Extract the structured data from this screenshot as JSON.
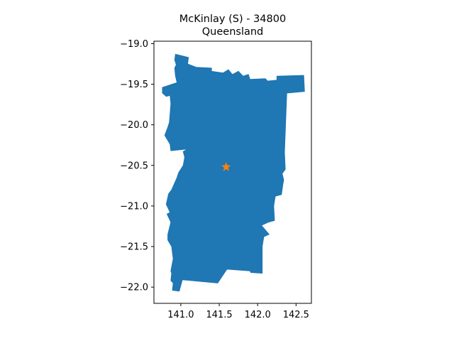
{
  "figure": {
    "title_line1": "McKinlay (S) - 34800",
    "title_line2": "Queensland"
  },
  "chart_data": {
    "type": "map",
    "xlim": [
      140.65,
      142.7
    ],
    "ylim": [
      -22.2,
      -18.97
    ],
    "xticks": [
      141.0,
      141.5,
      142.0,
      142.5
    ],
    "xtick_labels": [
      "141.0",
      "141.5",
      "142.0",
      "142.5"
    ],
    "yticks": [
      -19.0,
      -19.5,
      -20.0,
      -20.5,
      -21.0,
      -21.5,
      -22.0
    ],
    "ytick_labels": [
      "−19.0",
      "−19.5",
      "−20.0",
      "−20.5",
      "−21.0",
      "−21.5",
      "−22.0"
    ],
    "region_color": "#1f77b4",
    "marker_color": "#ff7f0e",
    "marker": {
      "lon": 141.59,
      "lat": -20.52,
      "symbol": "star"
    },
    "region_outline": [
      [
        140.93,
        -19.13
      ],
      [
        141.1,
        -19.17
      ],
      [
        141.09,
        -19.25
      ],
      [
        141.2,
        -19.29
      ],
      [
        141.4,
        -19.3
      ],
      [
        141.4,
        -19.34
      ],
      [
        141.55,
        -19.36
      ],
      [
        141.62,
        -19.32
      ],
      [
        141.67,
        -19.38
      ],
      [
        141.75,
        -19.34
      ],
      [
        141.81,
        -19.4
      ],
      [
        141.88,
        -19.38
      ],
      [
        141.9,
        -19.44
      ],
      [
        142.1,
        -19.43
      ],
      [
        142.13,
        -19.46
      ],
      [
        142.25,
        -19.45
      ],
      [
        142.25,
        -19.4
      ],
      [
        142.6,
        -19.39
      ],
      [
        142.61,
        -19.59
      ],
      [
        142.38,
        -19.61
      ],
      [
        142.35,
        -20.34
      ],
      [
        142.36,
        -20.55
      ],
      [
        142.32,
        -20.6
      ],
      [
        142.34,
        -20.68
      ],
      [
        142.33,
        -20.73
      ],
      [
        142.31,
        -20.86
      ],
      [
        142.23,
        -20.88
      ],
      [
        142.21,
        -21.0
      ],
      [
        142.22,
        -21.18
      ],
      [
        142.14,
        -21.2
      ],
      [
        142.05,
        -21.24
      ],
      [
        142.15,
        -21.35
      ],
      [
        142.08,
        -21.38
      ],
      [
        142.06,
        -21.5
      ],
      [
        142.06,
        -21.83
      ],
      [
        141.91,
        -21.82
      ],
      [
        141.9,
        -21.8
      ],
      [
        141.6,
        -21.78
      ],
      [
        141.48,
        -21.95
      ],
      [
        141.02,
        -21.91
      ],
      [
        140.98,
        -22.05
      ],
      [
        140.89,
        -22.04
      ],
      [
        140.9,
        -21.95
      ],
      [
        140.87,
        -21.92
      ],
      [
        140.88,
        -21.83
      ],
      [
        140.87,
        -21.8
      ],
      [
        140.9,
        -21.65
      ],
      [
        140.88,
        -21.5
      ],
      [
        140.83,
        -21.42
      ],
      [
        140.83,
        -21.35
      ],
      [
        140.87,
        -21.2
      ],
      [
        140.82,
        -21.1
      ],
      [
        140.86,
        -21.08
      ],
      [
        140.81,
        -20.98
      ],
      [
        140.84,
        -20.85
      ],
      [
        140.88,
        -20.8
      ],
      [
        140.95,
        -20.65
      ],
      [
        140.97,
        -20.59
      ],
      [
        141.03,
        -20.5
      ],
      [
        141.05,
        -20.4
      ],
      [
        141.03,
        -20.33
      ],
      [
        141.08,
        -20.3
      ],
      [
        140.87,
        -20.32
      ],
      [
        140.86,
        -20.24
      ],
      [
        140.79,
        -20.13
      ],
      [
        140.83,
        -20.03
      ],
      [
        140.85,
        -19.97
      ],
      [
        140.87,
        -19.74
      ],
      [
        140.86,
        -19.64
      ],
      [
        140.81,
        -19.65
      ],
      [
        140.76,
        -19.61
      ],
      [
        140.76,
        -19.54
      ],
      [
        140.95,
        -19.48
      ],
      [
        140.93,
        -19.4
      ],
      [
        140.92,
        -19.3
      ],
      [
        140.94,
        -19.26
      ],
      [
        140.92,
        -19.2
      ],
      [
        140.93,
        -19.13
      ]
    ]
  }
}
